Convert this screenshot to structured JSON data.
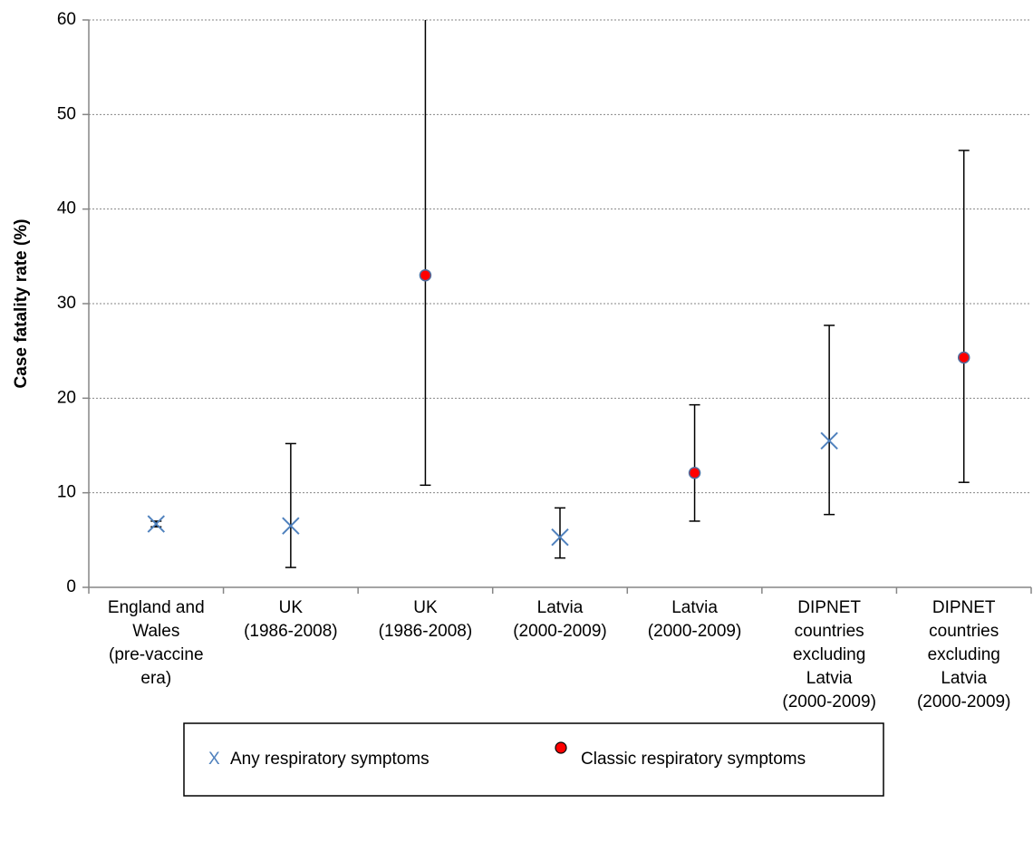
{
  "chart_data": {
    "type": "scatter",
    "title": "",
    "xlabel": "",
    "ylabel": "Case fatality rate (%)",
    "ylim": [
      0,
      60
    ],
    "yticks": [
      0,
      10,
      20,
      30,
      40,
      50,
      60
    ],
    "grid": "horizontal dotted",
    "legend_position": "bottom",
    "categories": [
      [
        "England and",
        "Wales",
        "(pre-vaccine",
        "era)"
      ],
      [
        "UK",
        "(1986-2008)"
      ],
      [
        "UK",
        "(1986-2008)"
      ],
      [
        "Latvia",
        "(2000-2009)"
      ],
      [
        "Latvia",
        "(2000-2009)"
      ],
      [
        "DIPNET",
        "countries",
        "excluding",
        "Latvia",
        "(2000-2009)"
      ],
      [
        "DIPNET",
        "countries",
        "excluding",
        "Latvia",
        "(2000-2009)"
      ]
    ],
    "series": [
      {
        "name": "Any respiratory symptoms",
        "marker": "x",
        "color": "#4f81bd",
        "points": [
          {
            "category_index": 0,
            "value": 6.7,
            "lower": 6.4,
            "upper": 7.0
          },
          {
            "category_index": 1,
            "value": 6.5,
            "lower": 2.1,
            "upper": 15.2
          },
          {
            "category_index": 3,
            "value": 5.3,
            "lower": 3.1,
            "upper": 8.4
          },
          {
            "category_index": 5,
            "value": 15.5,
            "lower": 7.7,
            "upper": 27.7
          }
        ]
      },
      {
        "name": "Classic respiratory symptoms",
        "marker": "circle",
        "color": "#ff0000",
        "points": [
          {
            "category_index": 2,
            "value": 33.0,
            "lower": 10.8,
            "upper": 60.0
          },
          {
            "category_index": 4,
            "value": 12.1,
            "lower": 7.0,
            "upper": 19.3
          },
          {
            "category_index": 6,
            "value": 24.3,
            "lower": 11.1,
            "upper": 46.2
          }
        ]
      }
    ]
  },
  "legend": {
    "items": [
      {
        "label": "Any respiratory symptoms",
        "glyph": "X"
      },
      {
        "label": "Classic respiratory symptoms"
      }
    ]
  }
}
